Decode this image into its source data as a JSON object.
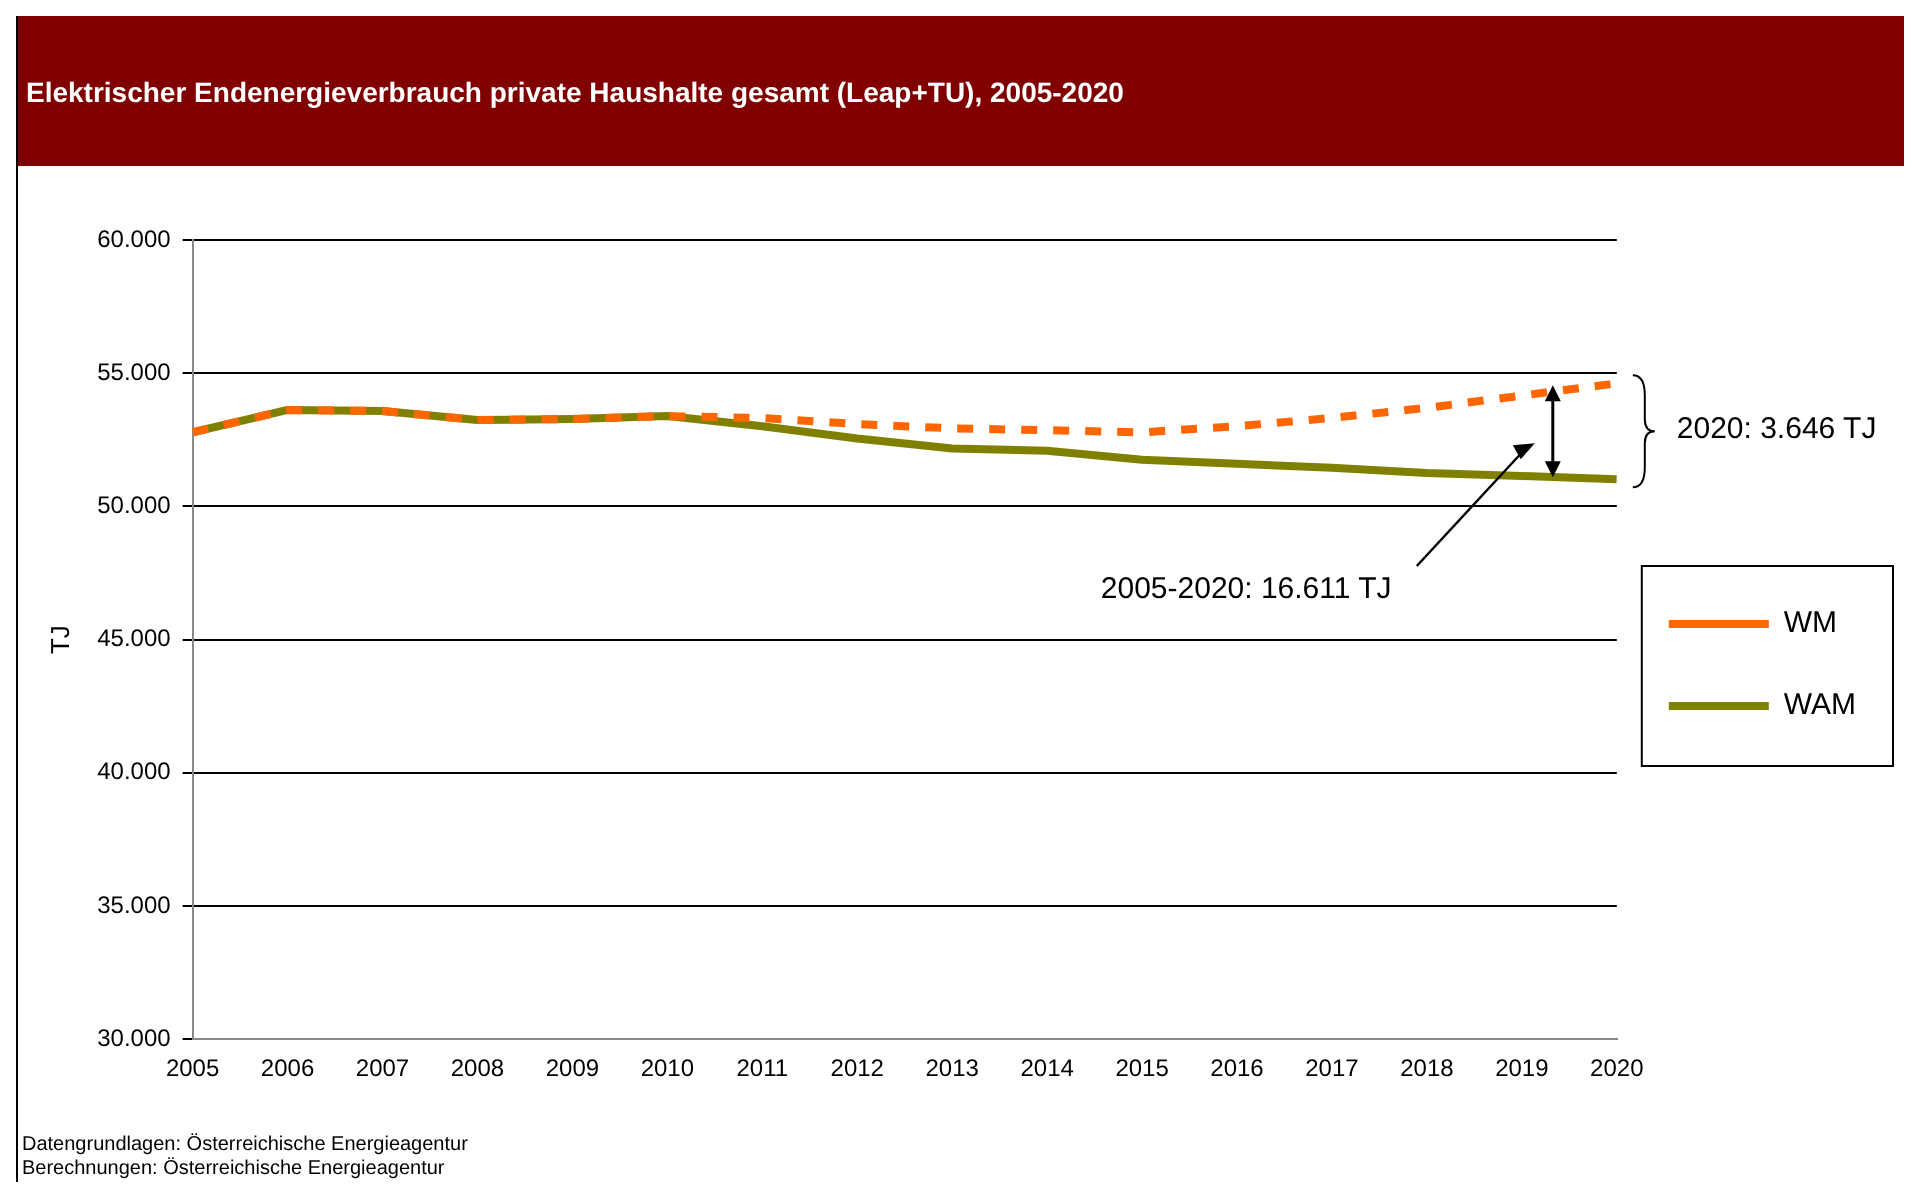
{
  "chart_data": {
    "type": "line",
    "title": "Elektrischer Endenergieverbrauch private Haushalte gesamt (Leap+TU), 2005-2020",
    "ylabel": "TJ",
    "x": [
      2005,
      2006,
      2007,
      2008,
      2009,
      2010,
      2011,
      2012,
      2013,
      2014,
      2015,
      2016,
      2017,
      2018,
      2019,
      2020
    ],
    "series": [
      {
        "name": "WM",
        "color": "#ff6600",
        "line_style": "dashed",
        "values": [
          52780,
          53620,
          53580,
          53240,
          53280,
          53390,
          53320,
          53090,
          52930,
          52860,
          52780,
          53010,
          53320,
          53700,
          54160,
          54620
        ]
      },
      {
        "name": "WAM",
        "color": "#808000",
        "line_style": "solid",
        "values": [
          52780,
          53620,
          53580,
          53240,
          53280,
          53390,
          53010,
          52550,
          52170,
          52090,
          51750,
          51600,
          51450,
          51250,
          51140,
          51020
        ]
      }
    ],
    "xlim": [
      2005,
      2020
    ],
    "xticks": [
      2005,
      2006,
      2007,
      2008,
      2009,
      2010,
      2011,
      2012,
      2013,
      2014,
      2015,
      2016,
      2017,
      2018,
      2019,
      2020
    ],
    "ylim": [
      30000,
      60000
    ],
    "yticks": [
      {
        "value": 30000,
        "label": "30.000"
      },
      {
        "value": 35000,
        "label": "35.000"
      },
      {
        "value": 40000,
        "label": "40.000"
      },
      {
        "value": 45000,
        "label": "45.000"
      },
      {
        "value": 50000,
        "label": "50.000"
      },
      {
        "value": 55000,
        "label": "55.000"
      },
      {
        "value": 60000,
        "label": "60.000"
      }
    ],
    "grid": "y",
    "legend": "right",
    "marker": "none",
    "annotations": [
      "2020: 3.646 TJ",
      "2005-2020: 16.611 TJ",
      "Datengrundlagen: Österreichische Energieagentur",
      "Berechnungen: Österreichische Energieagentur"
    ]
  }
}
